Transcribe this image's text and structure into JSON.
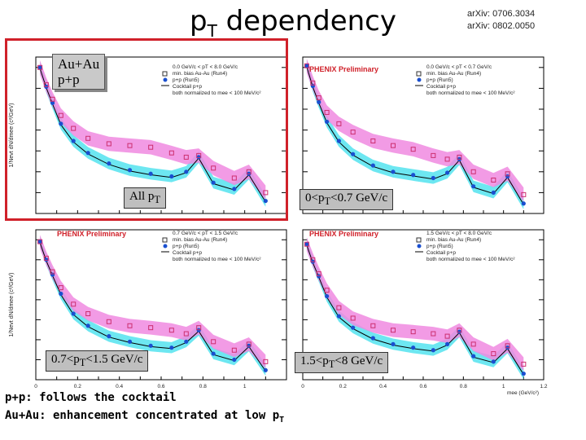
{
  "title": {
    "main": "p",
    "sub": "T",
    "rest": " dependency"
  },
  "refs": [
    "arXiv: 0706.3034",
    "arXiv: 0802.0050"
  ],
  "overlay": {
    "line1": "Au+Au",
    "line2": "p+p"
  },
  "chart_data": [
    {
      "type": "scatter",
      "panel": "All pT",
      "label": "All p",
      "label_sub": "T",
      "ylabel": "1/Nevt dN/dmee (c²/GeV)",
      "yscale": "log",
      "ylim": [
        1e-06,
        30
      ],
      "xlim": [
        0,
        1.2
      ],
      "legend": [
        "0.0 GeV/c < pT < 8.0 GeV/c",
        "min. bias Au-Au (Run4)",
        "p+p (Run5)",
        "Cocktail p+p",
        "both normalized to mee < 100 MeV/c²"
      ],
      "series": [
        {
          "name": "min. bias Au-Au (Run4)",
          "color": "#cc2f6f",
          "x": [
            0.02,
            0.05,
            0.08,
            0.12,
            0.18,
            0.25,
            0.35,
            0.45,
            0.55,
            0.65,
            0.72,
            0.78,
            0.85,
            0.95,
            1.02,
            1.1
          ],
          "y": [
            10,
            1.5,
            0.3,
            0.05,
            0.012,
            0.004,
            0.0022,
            0.0018,
            0.0015,
            0.0008,
            0.0005,
            0.0006,
            0.00015,
            5e-05,
            0.0001,
            1e-05
          ]
        },
        {
          "name": "p+p (Run5)",
          "color": "#1a4fd0",
          "x": [
            0.02,
            0.05,
            0.08,
            0.12,
            0.18,
            0.25,
            0.35,
            0.45,
            0.55,
            0.65,
            0.72,
            0.78,
            0.85,
            0.95,
            1.02,
            1.1
          ],
          "y": [
            10,
            1.2,
            0.2,
            0.02,
            0.003,
            0.0008,
            0.00025,
            0.00012,
            8e-05,
            6e-05,
            0.0001,
            0.0005,
            3e-05,
            1.5e-05,
            8e-05,
            4e-06
          ]
        }
      ]
    },
    {
      "type": "scatter",
      "panel": "0<pT<0.7 GeV/c",
      "label": "0<p",
      "label_sub": "T",
      "label_rest": "<0.7 GeV/c",
      "header": "PHENIX Preliminary",
      "yscale": "log",
      "xlim": [
        0,
        1.2
      ],
      "legend": [
        "0.0 GeV/c < pT < 0.7 GeV/c",
        "min. bias Au-Au (Run4)",
        "p+p (Run5)",
        "Cocktail p+p",
        "both normalized to mee < 100 MeV/c²"
      ],
      "series": [
        {
          "name": "min. bias Au-Au (Run4)",
          "color": "#cc2f6f",
          "x": [
            0.02,
            0.05,
            0.08,
            0.12,
            0.18,
            0.25,
            0.35,
            0.45,
            0.55,
            0.65,
            0.72,
            0.78,
            0.85,
            0.95,
            1.02,
            1.1
          ],
          "y": [
            12,
            1.8,
            0.35,
            0.07,
            0.02,
            0.008,
            0.003,
            0.0018,
            0.0012,
            0.0006,
            0.0004,
            0.0005,
            0.0001,
            4e-05,
            8e-05,
            8e-06
          ]
        },
        {
          "name": "p+p (Run5)",
          "color": "#1a4fd0",
          "x": [
            0.02,
            0.05,
            0.08,
            0.12,
            0.18,
            0.25,
            0.35,
            0.45,
            0.55,
            0.65,
            0.72,
            0.78,
            0.85,
            0.95,
            1.02,
            1.1
          ],
          "y": [
            12,
            1.3,
            0.22,
            0.025,
            0.003,
            0.0007,
            0.0002,
            0.0001,
            7e-05,
            5e-05,
            9e-05,
            0.0004,
            2e-05,
            1e-05,
            6e-05,
            3e-06
          ]
        }
      ]
    },
    {
      "type": "scatter",
      "panel": "0.7<pT<1.5 GeV/c",
      "label": "0.7<p",
      "label_sub": "T",
      "label_rest": "<1.5 GeV/c",
      "header": "PHENIX Preliminary",
      "ylabel": "1/Nevt dN/dmee (c²/GeV)",
      "yscale": "log",
      "xlim": [
        0,
        1.2
      ],
      "xticks": [
        "0",
        "0.2",
        "0.4",
        "0.6",
        "0.8",
        "1"
      ],
      "legend": [
        "0.7 GeV/c < pT < 1.5 GeV/c",
        "min. bias Au-Au (Run4)",
        "p+p (Run5)",
        "Cocktail p+p",
        "both normalized to mee < 100 MeV/c²"
      ],
      "series": [
        {
          "name": "min. bias Au-Au (Run4)",
          "color": "#cc2f6f",
          "x": [
            0.02,
            0.05,
            0.08,
            0.12,
            0.18,
            0.25,
            0.35,
            0.45,
            0.55,
            0.65,
            0.72,
            0.78,
            0.85,
            0.95,
            1.02,
            1.1
          ],
          "y": [
            8,
            1.2,
            0.25,
            0.04,
            0.006,
            0.002,
            0.0008,
            0.0005,
            0.0004,
            0.0003,
            0.0002,
            0.0004,
            8e-05,
            3e-05,
            6e-05,
            8e-06
          ]
        },
        {
          "name": "p+p (Run5)",
          "color": "#1a4fd0",
          "x": [
            0.02,
            0.05,
            0.08,
            0.12,
            0.18,
            0.25,
            0.35,
            0.45,
            0.55,
            0.65,
            0.72,
            0.78,
            0.85,
            0.95,
            1.02,
            1.1
          ],
          "y": [
            8,
            1.0,
            0.18,
            0.02,
            0.002,
            0.0005,
            0.00015,
            8e-05,
            5e-05,
            4e-05,
            8e-05,
            0.0003,
            2e-05,
            1e-05,
            5e-05,
            3e-06
          ]
        }
      ]
    },
    {
      "type": "scatter",
      "panel": "1.5<pT<8 GeV/c",
      "label": "1.5<p",
      "label_sub": "T",
      "label_rest": "<8 GeV/c",
      "header": "PHENIX Preliminary",
      "yscale": "log",
      "xlim": [
        0,
        1.2
      ],
      "xticks": [
        "0",
        "0.2",
        "0.4",
        "0.6",
        "0.8",
        "1",
        "1.2"
      ],
      "xlabel": "mee (GeV/c²)",
      "legend": [
        "1.5 GeV/c < pT < 8.0 GeV/c",
        "min. bias Au-Au (Run4)",
        "p+p (Run5)",
        "Cocktail p+p",
        "both normalized to mee < 100 MeV/c²"
      ],
      "series": [
        {
          "name": "min. bias Au-Au (Run4)",
          "color": "#cc2f6f",
          "x": [
            0.02,
            0.05,
            0.08,
            0.12,
            0.18,
            0.25,
            0.35,
            0.45,
            0.55,
            0.65,
            0.72,
            0.78,
            0.85,
            0.95,
            1.02,
            1.1
          ],
          "y": [
            6,
            1.0,
            0.2,
            0.03,
            0.004,
            0.0012,
            0.0005,
            0.0003,
            0.00025,
            0.0002,
            0.00015,
            0.0003,
            6e-05,
            2e-05,
            5e-05,
            6e-06
          ]
        },
        {
          "name": "p+p (Run5)",
          "color": "#1a4fd0",
          "x": [
            0.02,
            0.05,
            0.08,
            0.12,
            0.18,
            0.25,
            0.35,
            0.45,
            0.55,
            0.65,
            0.72,
            0.78,
            0.85,
            0.95,
            1.02,
            1.1
          ],
          "y": [
            6,
            0.8,
            0.15,
            0.015,
            0.0015,
            0.0004,
            0.00012,
            6e-05,
            4e-05,
            3e-05,
            6e-05,
            0.00025,
            1.5e-05,
            8e-06,
            4e-05,
            2e-06
          ]
        }
      ]
    }
  ],
  "bottom": {
    "line1": "p+p: follows the cocktail",
    "line2_main": "Au+Au: enhancement concentrated at low p",
    "line2_sub": "T"
  },
  "colors": {
    "auau": "#cc2f6f",
    "pp": "#1a4fd0",
    "auau_band": "#f08ae0",
    "pp_band": "#54e3ef",
    "highlight": "#d0212a"
  }
}
